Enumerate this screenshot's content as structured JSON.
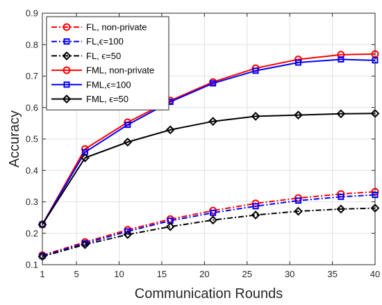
{
  "chart_data": {
    "type": "line",
    "title": "",
    "xlabel": "Communication Rounds",
    "ylabel": "Accuracy",
    "xlim": [
      1,
      40
    ],
    "ylim": [
      0.1,
      0.9
    ],
    "x": [
      1,
      6,
      11,
      16,
      21,
      26,
      31,
      36,
      40
    ],
    "xticks": [
      "1",
      "5",
      "10",
      "15",
      "20",
      "25",
      "30",
      "35",
      "40"
    ],
    "xtick_values": [
      1,
      5,
      10,
      15,
      20,
      25,
      30,
      35,
      40
    ],
    "yticks": [
      "0.1",
      "0.2",
      "0.3",
      "0.4",
      "0.5",
      "0.6",
      "0.7",
      "0.8",
      "0.9"
    ],
    "ytick_values": [
      0.1,
      0.2,
      0.3,
      0.4,
      0.5,
      0.6,
      0.7,
      0.8,
      0.9
    ],
    "grid": true,
    "legend_position": "top-left",
    "series": [
      {
        "name": "FL, non-private",
        "color": "#ff0000",
        "dash": "dashdot",
        "marker": "circle",
        "values": [
          0.13,
          0.172,
          0.211,
          0.245,
          0.272,
          0.295,
          0.312,
          0.325,
          0.332
        ]
      },
      {
        "name": "FL,ϵ=100",
        "color": "#0000ff",
        "dash": "dashdot",
        "marker": "square",
        "values": [
          0.128,
          0.168,
          0.206,
          0.24,
          0.265,
          0.286,
          0.304,
          0.316,
          0.322
        ]
      },
      {
        "name": "FL, ϵ=50",
        "color": "#000000",
        "dash": "dashdot",
        "marker": "diamond",
        "values": [
          0.126,
          0.164,
          0.196,
          0.221,
          0.242,
          0.258,
          0.27,
          0.277,
          0.28
        ]
      },
      {
        "name": "FML, non-private",
        "color": "#ff0000",
        "dash": "solid",
        "marker": "circle",
        "values": [
          0.228,
          0.468,
          0.553,
          0.622,
          0.681,
          0.725,
          0.753,
          0.768,
          0.77
        ]
      },
      {
        "name": "FML,ϵ=100",
        "color": "#0000ff",
        "dash": "solid",
        "marker": "square",
        "values": [
          0.228,
          0.458,
          0.545,
          0.618,
          0.677,
          0.717,
          0.743,
          0.753,
          0.75
        ]
      },
      {
        "name": "FML, ϵ=50",
        "color": "#000000",
        "dash": "solid",
        "marker": "diamond",
        "values": [
          0.228,
          0.44,
          0.49,
          0.529,
          0.556,
          0.572,
          0.576,
          0.58,
          0.581
        ]
      }
    ]
  }
}
